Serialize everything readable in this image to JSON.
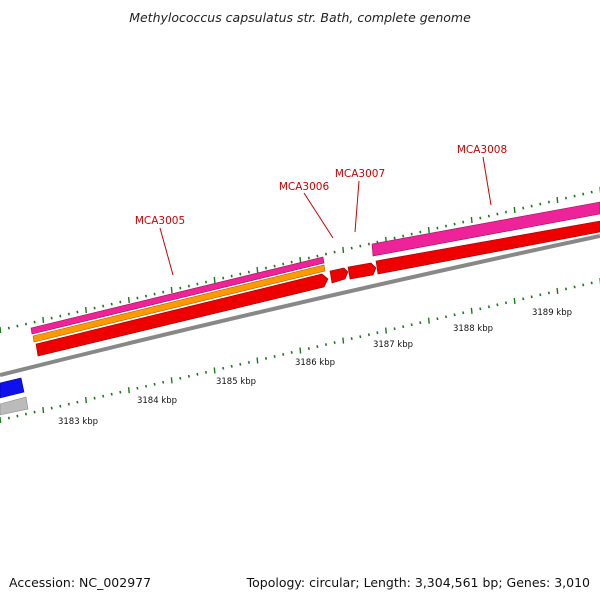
{
  "title": "Methylococcus capsulatus str. Bath, complete genome",
  "footer": {
    "accession": "Accession: NC_002977",
    "summary": "Topology: circular; Length: 3,304,561 bp; Genes: 3,010"
  },
  "colors": {
    "gene_label": "#cc0000",
    "tick": "#1a7a1a",
    "backbone": "#888888",
    "cds": "#ee0000",
    "magenta_track": "#ee2299",
    "orange_track": "#ff9900",
    "blue_track": "#1010ee",
    "grey_track": "#bbbbbb",
    "scale_text": "#111111"
  },
  "scale_labels": [
    {
      "kbp": 3183,
      "text": "3183 kbp"
    },
    {
      "kbp": 3184,
      "text": "3184 kbp"
    },
    {
      "kbp": 3185,
      "text": "3185 kbp"
    },
    {
      "kbp": 3186,
      "text": "3186 kbp"
    },
    {
      "kbp": 3187,
      "text": "3187 kbp"
    },
    {
      "kbp": 3188,
      "text": "3188 kbp"
    },
    {
      "kbp": 3189,
      "text": "3189 kbp"
    }
  ],
  "genes": [
    {
      "id": "MCA3005",
      "label": "MCA3005"
    },
    {
      "id": "MCA3006",
      "label": "MCA3006"
    },
    {
      "id": "MCA3007",
      "label": "MCA3007"
    },
    {
      "id": "MCA3008",
      "label": "MCA3008"
    }
  ]
}
